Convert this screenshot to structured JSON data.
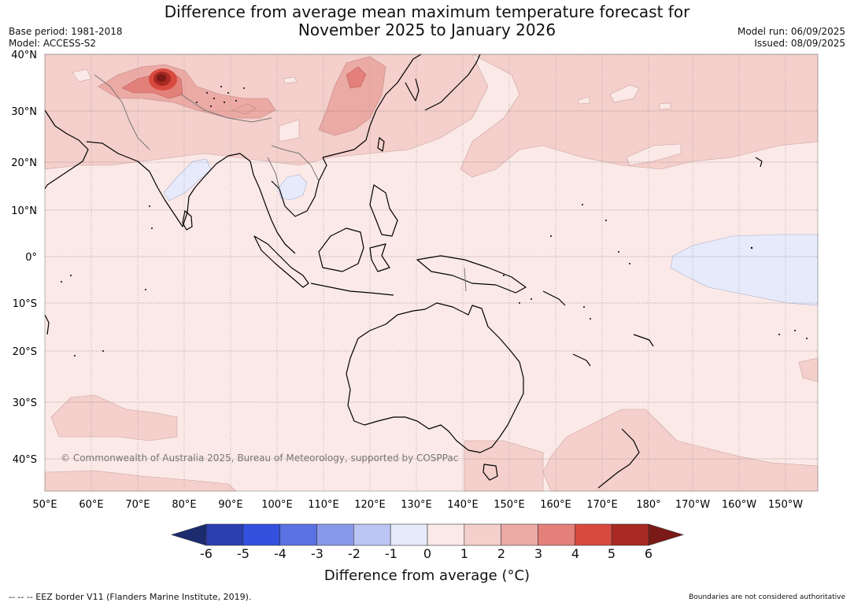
{
  "title_line1": "Difference from average mean maximum temperature forecast for",
  "title_line2": "November 2025 to January 2026",
  "meta_left": [
    "Base period: 1981-2018",
    "Model: ACCESS-S2"
  ],
  "meta_right": [
    "Model run: 06/09/2025",
    "Issued: 08/09/2025"
  ],
  "copyright": "© Commonwealth of Australia 2025, Bureau of Meteorology, supported by COSPPac",
  "lat_labels": [
    "40°N",
    "30°N",
    "20°N",
    "10°N",
    "0°",
    "10°S",
    "20°S",
    "30°S",
    "40°S"
  ],
  "lon_labels": [
    "50°E",
    "60°E",
    "70°E",
    "80°E",
    "90°E",
    "100°E",
    "110°E",
    "120°E",
    "130°E",
    "140°E",
    "150°E",
    "160°E",
    "170°E",
    "180°",
    "170°W",
    "160°W",
    "150°W"
  ],
  "colorbar": {
    "ticks": [
      "-6",
      "-5",
      "-4",
      "-3",
      "-2",
      "-1",
      "0",
      "1",
      "2",
      "3",
      "4",
      "5",
      "6"
    ],
    "colors": [
      "#1c2a6e",
      "#2a3eb0",
      "#3450de",
      "#5a72e3",
      "#8898ea",
      "#bcc4f3",
      "#e6eafa",
      "#fbe9e7",
      "#f4cfcb",
      "#ecaaa5",
      "#e4807a",
      "#d84a40",
      "#a82a22",
      "#7a1a16"
    ],
    "label": "Difference from average (°C)"
  },
  "footer_left": "-- -- -- EEZ border V11 (Flanders Marine Institute, 2019).",
  "footer_right": "Boundaries are not considered authoritative"
}
